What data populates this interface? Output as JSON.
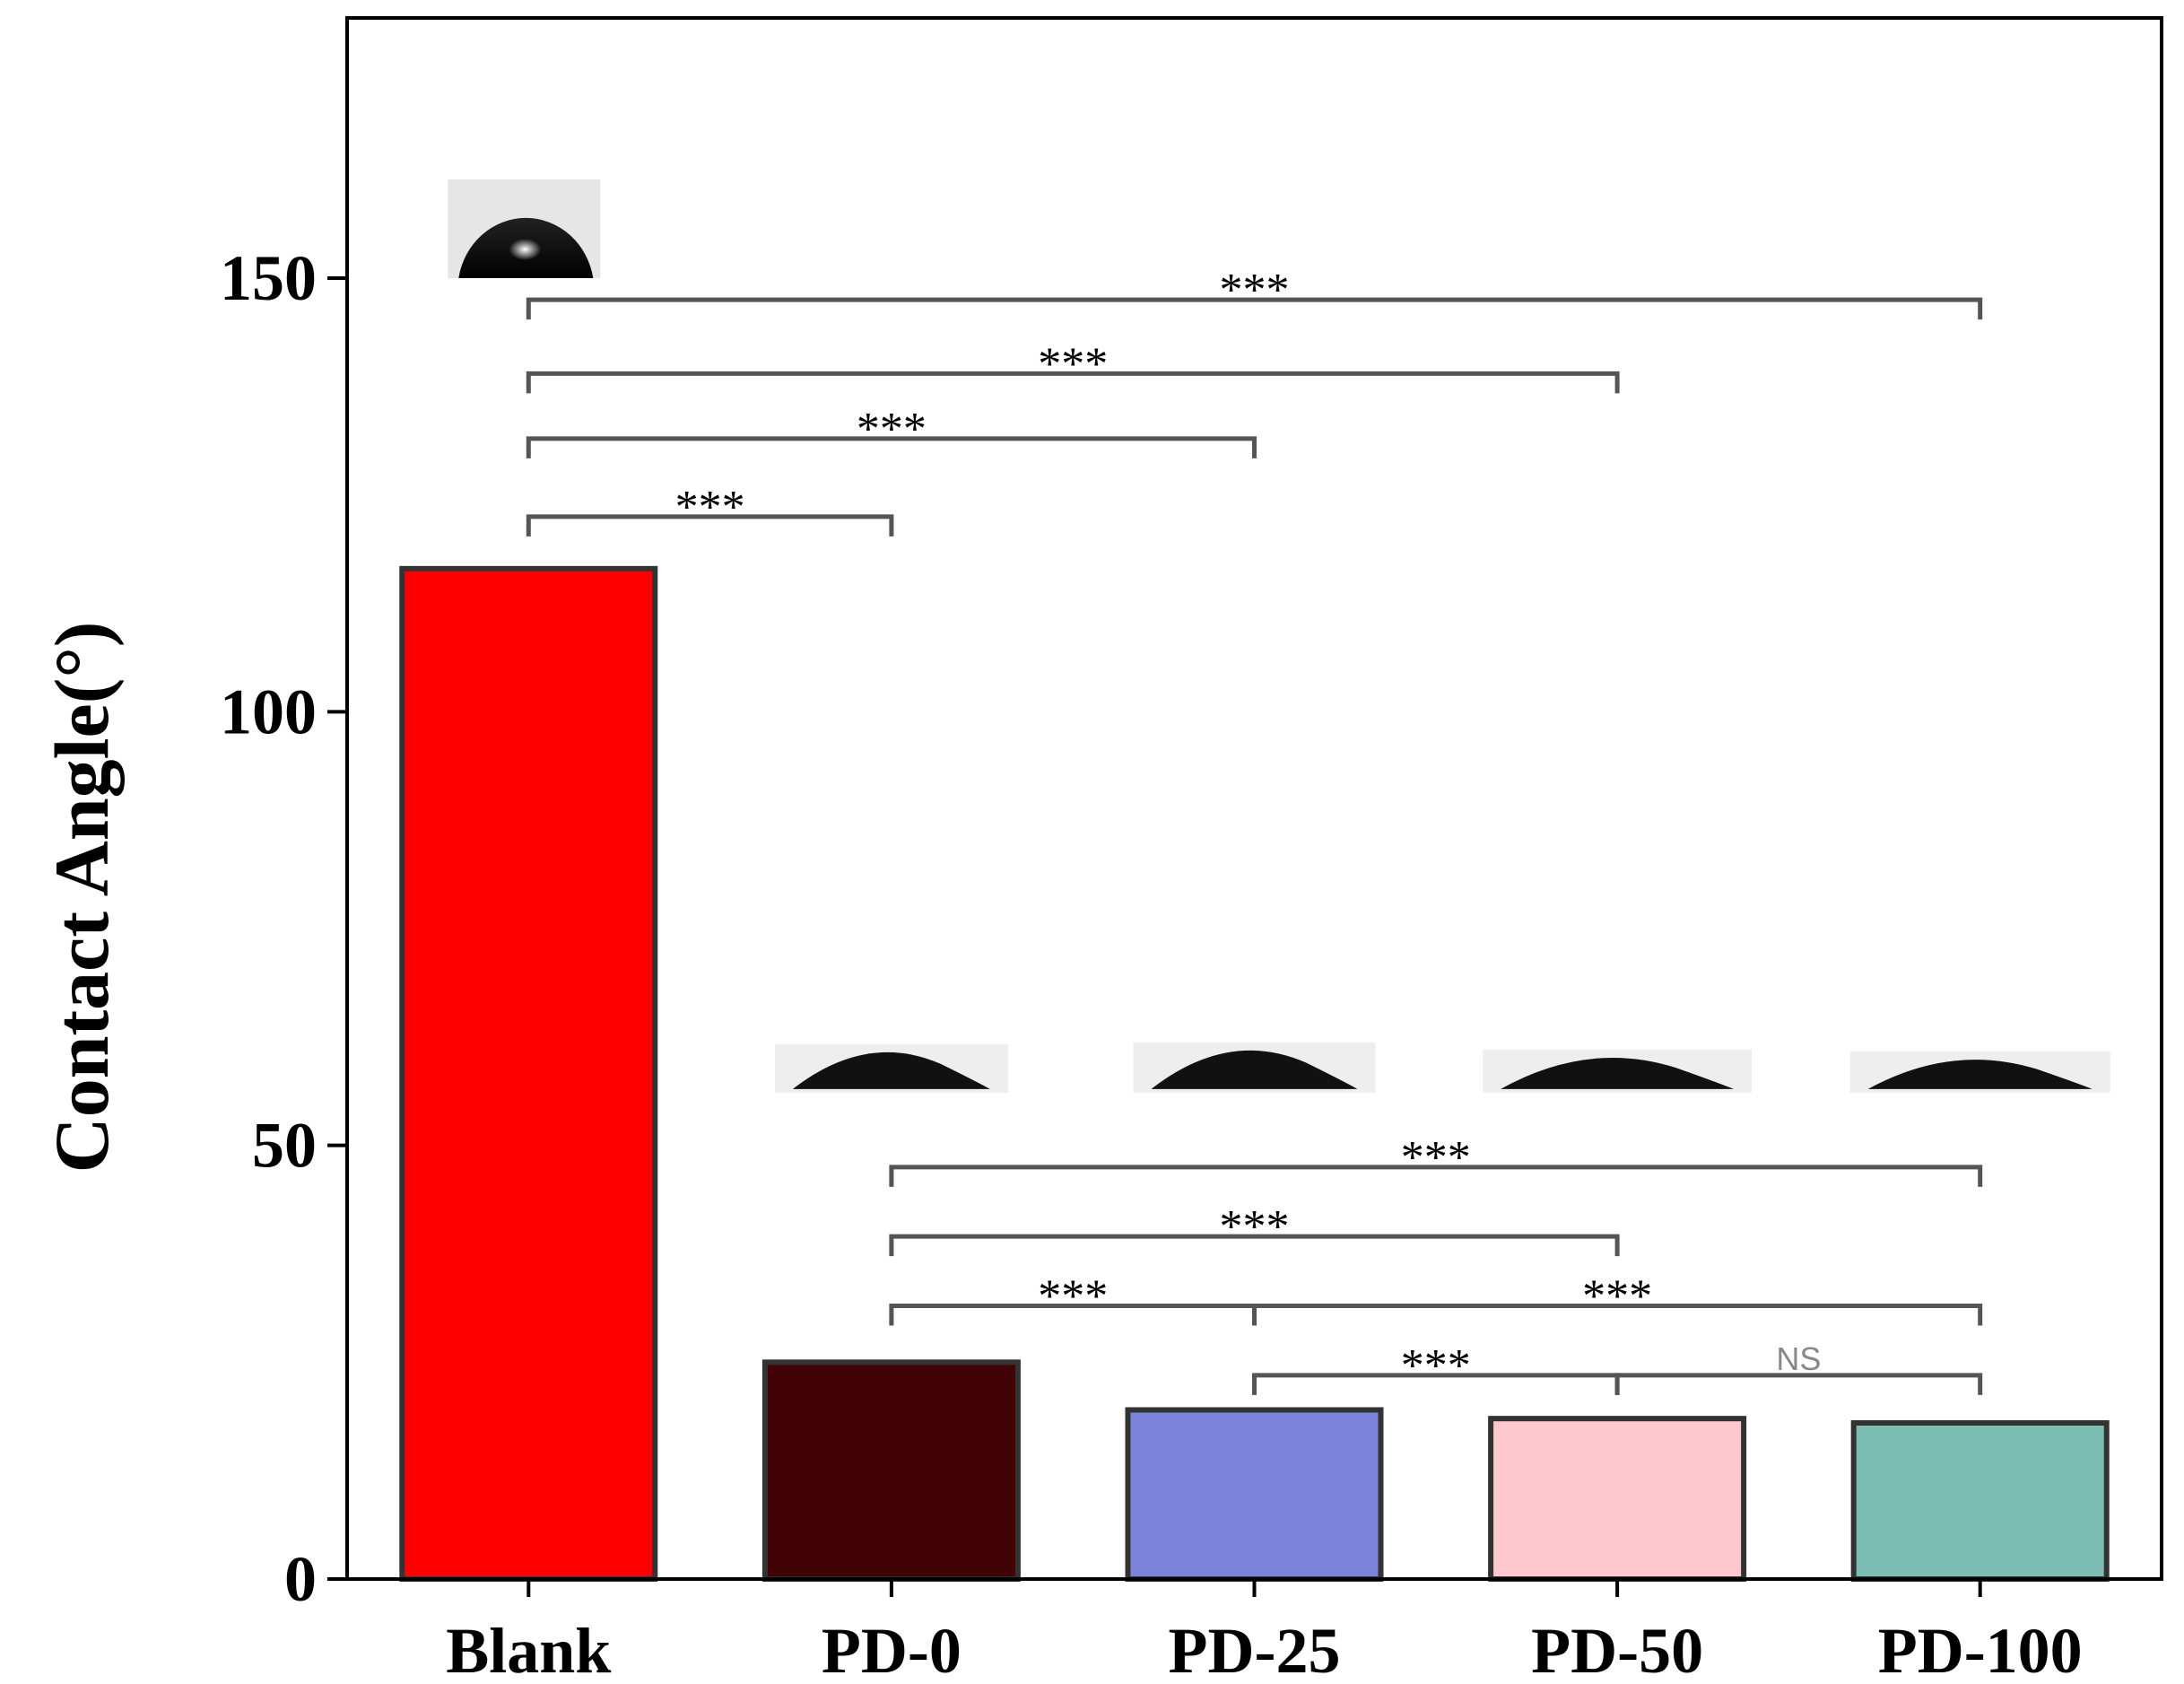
{
  "chart_data": {
    "type": "bar",
    "categories": [
      "Blank",
      "PD-0",
      "PD-25",
      "PD-50",
      "PD-100"
    ],
    "values": [
      116.5,
      25,
      19.5,
      18.5,
      18
    ],
    "colors": [
      "#ff0000",
      "#420307",
      "#7b83db",
      "#ffc8cf",
      "#7dbeb4"
    ],
    "ylabel": "Contact Angle(°)",
    "ylim": [
      0,
      180
    ],
    "yticks": [
      0,
      50,
      100,
      150
    ],
    "droplet_images": [
      "Blank",
      "PD-0",
      "PD-25",
      "PD-50",
      "PD-100"
    ],
    "significance": [
      {
        "from": "Blank",
        "to": "PD-100",
        "label": "***",
        "y": 147.5
      },
      {
        "from": "Blank",
        "to": "PD-50",
        "label": "***",
        "y": 139
      },
      {
        "from": "Blank",
        "to": "PD-25",
        "label": "***",
        "y": 131.5
      },
      {
        "from": "Blank",
        "to": "PD-0",
        "label": "***",
        "y": 122.5
      },
      {
        "from": "PD-0",
        "to": "PD-100",
        "label": "***",
        "y": 47.5
      },
      {
        "from": "PD-0",
        "to": "PD-50",
        "label": "***",
        "y": 39.5
      },
      {
        "from": "PD-0",
        "to": "PD-25",
        "label": "***",
        "y": 31.5
      },
      {
        "from": "PD-25",
        "to": "PD-100",
        "label": "***",
        "y": 31.5
      },
      {
        "from": "PD-25",
        "to": "PD-50",
        "label": "***",
        "y": 23.5
      },
      {
        "from": "PD-50",
        "to": "PD-100",
        "label": "NS",
        "y": 23.5
      }
    ]
  }
}
